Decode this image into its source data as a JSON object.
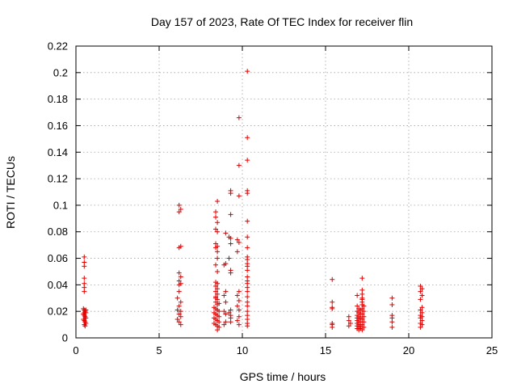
{
  "colors": {
    "series": "#e00000",
    "frame": "#000000",
    "grid": "#a0a0a0"
  },
  "chart_data": {
    "type": "scatter",
    "title": "Day 157 of 2023, Rate Of TEC Index for receiver flin",
    "xlabel": "GPS time / hours",
    "ylabel": "ROTI / TECUs",
    "xlim": [
      0,
      25
    ],
    "ylim": [
      0,
      0.22
    ],
    "xticks": [
      0,
      5,
      10,
      15,
      20,
      25
    ],
    "xtick_labels": [
      "0",
      "5",
      "10",
      "15",
      "20",
      "25"
    ],
    "yticks": [
      0,
      0.02,
      0.04,
      0.06,
      0.08,
      0.1,
      0.12,
      0.14,
      0.16,
      0.18,
      0.2,
      0.22
    ],
    "ytick_labels": [
      "0",
      "0.02",
      "0.04",
      "0.06",
      "0.08",
      "0.1",
      "0.12",
      "0.14",
      "0.16",
      "0.18",
      "0.2",
      "0.22"
    ],
    "grid": true,
    "marker": "+",
    "series": [
      {
        "name": "ROTI",
        "color": "#e00000",
        "points": [
          [
            0.5,
            0.061
          ],
          [
            0.5,
            0.057
          ],
          [
            0.5,
            0.054
          ],
          [
            0.5,
            0.045
          ],
          [
            0.5,
            0.041
          ],
          [
            0.5,
            0.038
          ],
          [
            0.5,
            0.035
          ],
          [
            0.45,
            0.022
          ],
          [
            0.5,
            0.021
          ],
          [
            0.55,
            0.02
          ],
          [
            0.6,
            0.019
          ],
          [
            0.45,
            0.018
          ],
          [
            0.5,
            0.017
          ],
          [
            0.55,
            0.016
          ],
          [
            0.6,
            0.015
          ],
          [
            0.45,
            0.014
          ],
          [
            0.5,
            0.013
          ],
          [
            0.55,
            0.012
          ],
          [
            0.6,
            0.011
          ],
          [
            0.5,
            0.01
          ],
          [
            0.55,
            0.009
          ],
          [
            0.5,
            0.019
          ],
          [
            0.6,
            0.021
          ],
          [
            6.2,
            0.1
          ],
          [
            6.3,
            0.097
          ],
          [
            6.2,
            0.095
          ],
          [
            6.3,
            0.069
          ],
          [
            6.2,
            0.068
          ],
          [
            6.2,
            0.049
          ],
          [
            6.3,
            0.046
          ],
          [
            6.2,
            0.043
          ],
          [
            6.3,
            0.041
          ],
          [
            6.2,
            0.04
          ],
          [
            6.2,
            0.035
          ],
          [
            6.1,
            0.03
          ],
          [
            6.3,
            0.027
          ],
          [
            6.2,
            0.024
          ],
          [
            6.1,
            0.021
          ],
          [
            6.3,
            0.02
          ],
          [
            6.2,
            0.018
          ],
          [
            6.3,
            0.016
          ],
          [
            6.1,
            0.014
          ],
          [
            6.2,
            0.012
          ],
          [
            6.3,
            0.01
          ],
          [
            8.5,
            0.103
          ],
          [
            8.4,
            0.095
          ],
          [
            8.4,
            0.091
          ],
          [
            8.5,
            0.087
          ],
          [
            8.4,
            0.082
          ],
          [
            8.5,
            0.08
          ],
          [
            8.4,
            0.071
          ],
          [
            8.5,
            0.069
          ],
          [
            8.4,
            0.068
          ],
          [
            8.5,
            0.065
          ],
          [
            8.5,
            0.06
          ],
          [
            8.4,
            0.055
          ],
          [
            8.5,
            0.05
          ],
          [
            8.4,
            0.042
          ],
          [
            8.5,
            0.041
          ],
          [
            8.4,
            0.039
          ],
          [
            8.5,
            0.037
          ],
          [
            8.4,
            0.035
          ],
          [
            8.5,
            0.033
          ],
          [
            8.4,
            0.031
          ],
          [
            8.5,
            0.029
          ],
          [
            8.4,
            0.027
          ],
          [
            8.5,
            0.025
          ],
          [
            8.3,
            0.023
          ],
          [
            8.4,
            0.022
          ],
          [
            8.5,
            0.021
          ],
          [
            8.6,
            0.02
          ],
          [
            8.3,
            0.019
          ],
          [
            8.4,
            0.018
          ],
          [
            8.5,
            0.017
          ],
          [
            8.6,
            0.016
          ],
          [
            8.3,
            0.015
          ],
          [
            8.4,
            0.014
          ],
          [
            8.5,
            0.013
          ],
          [
            8.6,
            0.012
          ],
          [
            8.3,
            0.011
          ],
          [
            8.4,
            0.01
          ],
          [
            8.5,
            0.009
          ],
          [
            8.6,
            0.008
          ],
          [
            8.5,
            0.006
          ],
          [
            8.4,
            0.03
          ],
          [
            8.6,
            0.026
          ],
          [
            9.0,
            0.079
          ],
          [
            9.0,
            0.056
          ],
          [
            8.9,
            0.055
          ],
          [
            9.0,
            0.035
          ],
          [
            8.9,
            0.032
          ],
          [
            9.0,
            0.027
          ],
          [
            8.9,
            0.02
          ],
          [
            9.0,
            0.018
          ],
          [
            9.0,
            0.012
          ],
          [
            8.9,
            0.01
          ],
          [
            9.3,
            0.111
          ],
          [
            9.3,
            0.109
          ],
          [
            9.3,
            0.093
          ],
          [
            9.2,
            0.076
          ],
          [
            9.3,
            0.075
          ],
          [
            9.3,
            0.071
          ],
          [
            9.2,
            0.06
          ],
          [
            9.3,
            0.051
          ],
          [
            9.3,
            0.049
          ],
          [
            9.3,
            0.021
          ],
          [
            9.2,
            0.019
          ],
          [
            9.3,
            0.017
          ],
          [
            9.3,
            0.015
          ],
          [
            9.3,
            0.012
          ],
          [
            9.8,
            0.166
          ],
          [
            9.8,
            0.13
          ],
          [
            9.8,
            0.107
          ],
          [
            9.7,
            0.074
          ],
          [
            9.8,
            0.072
          ],
          [
            9.7,
            0.065
          ],
          [
            9.8,
            0.035
          ],
          [
            9.7,
            0.032
          ],
          [
            9.8,
            0.028
          ],
          [
            9.7,
            0.024
          ],
          [
            9.8,
            0.021
          ],
          [
            9.8,
            0.016
          ],
          [
            9.7,
            0.013
          ],
          [
            9.8,
            0.01
          ],
          [
            10.3,
            0.201
          ],
          [
            10.3,
            0.151
          ],
          [
            10.3,
            0.134
          ],
          [
            10.3,
            0.111
          ],
          [
            10.3,
            0.109
          ],
          [
            10.3,
            0.088
          ],
          [
            10.3,
            0.076
          ],
          [
            10.3,
            0.068
          ],
          [
            10.3,
            0.061
          ],
          [
            10.3,
            0.059
          ],
          [
            10.3,
            0.056
          ],
          [
            10.3,
            0.054
          ],
          [
            10.3,
            0.051
          ],
          [
            10.3,
            0.046
          ],
          [
            10.3,
            0.043
          ],
          [
            10.3,
            0.041
          ],
          [
            10.3,
            0.038
          ],
          [
            10.3,
            0.035
          ],
          [
            10.3,
            0.031
          ],
          [
            10.3,
            0.027
          ],
          [
            10.3,
            0.024
          ],
          [
            10.3,
            0.02
          ],
          [
            10.3,
            0.017
          ],
          [
            10.3,
            0.014
          ],
          [
            10.3,
            0.011
          ],
          [
            10.3,
            0.009
          ],
          [
            15.4,
            0.044
          ],
          [
            15.4,
            0.027
          ],
          [
            15.4,
            0.023
          ],
          [
            15.4,
            0.022
          ],
          [
            15.4,
            0.011
          ],
          [
            15.4,
            0.01
          ],
          [
            15.4,
            0.008
          ],
          [
            16.4,
            0.016
          ],
          [
            16.4,
            0.013
          ],
          [
            16.5,
            0.011
          ],
          [
            16.4,
            0.009
          ],
          [
            16.9,
            0.032
          ],
          [
            16.9,
            0.024
          ],
          [
            17.0,
            0.022
          ],
          [
            16.9,
            0.02
          ],
          [
            17.0,
            0.019
          ],
          [
            16.9,
            0.017
          ],
          [
            17.0,
            0.016
          ],
          [
            16.9,
            0.015
          ],
          [
            17.0,
            0.014
          ],
          [
            16.9,
            0.013
          ],
          [
            17.0,
            0.012
          ],
          [
            16.9,
            0.011
          ],
          [
            17.0,
            0.01
          ],
          [
            16.9,
            0.009
          ],
          [
            17.0,
            0.008
          ],
          [
            16.9,
            0.007
          ],
          [
            17.0,
            0.006
          ],
          [
            17.1,
            0.021
          ],
          [
            17.1,
            0.018
          ],
          [
            17.1,
            0.015
          ],
          [
            17.1,
            0.012
          ],
          [
            17.1,
            0.009
          ],
          [
            17.1,
            0.007
          ],
          [
            17.2,
            0.045
          ],
          [
            17.2,
            0.036
          ],
          [
            17.2,
            0.033
          ],
          [
            17.2,
            0.03
          ],
          [
            17.2,
            0.029
          ],
          [
            17.2,
            0.027
          ],
          [
            17.2,
            0.025
          ],
          [
            17.3,
            0.024
          ],
          [
            17.2,
            0.022
          ],
          [
            17.3,
            0.02
          ],
          [
            17.2,
            0.018
          ],
          [
            17.3,
            0.016
          ],
          [
            17.2,
            0.014
          ],
          [
            17.3,
            0.012
          ],
          [
            17.2,
            0.01
          ],
          [
            17.3,
            0.008
          ],
          [
            17.2,
            0.006
          ],
          [
            19.0,
            0.03
          ],
          [
            19.0,
            0.025
          ],
          [
            19.0,
            0.017
          ],
          [
            19.0,
            0.015
          ],
          [
            19.0,
            0.012
          ],
          [
            19.0,
            0.008
          ],
          [
            20.7,
            0.039
          ],
          [
            20.8,
            0.037
          ],
          [
            20.7,
            0.035
          ],
          [
            20.8,
            0.032
          ],
          [
            20.7,
            0.029
          ],
          [
            20.8,
            0.023
          ],
          [
            20.7,
            0.021
          ],
          [
            20.8,
            0.019
          ],
          [
            20.7,
            0.017
          ],
          [
            20.8,
            0.016
          ],
          [
            20.7,
            0.015
          ],
          [
            20.8,
            0.013
          ],
          [
            20.7,
            0.011
          ],
          [
            20.8,
            0.01
          ],
          [
            20.7,
            0.008
          ]
        ]
      }
    ]
  }
}
